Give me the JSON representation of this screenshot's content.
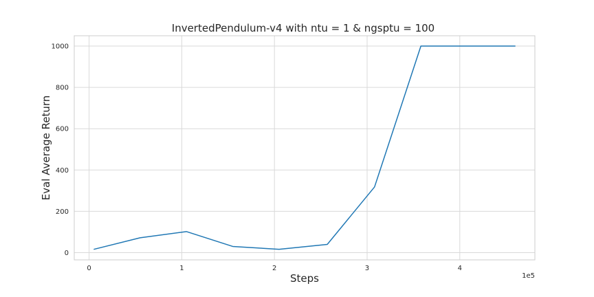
{
  "chart_data": {
    "type": "line",
    "title": "InvertedPendulum-v4 with ntu = 1 & ngsptu = 100",
    "xlabel": "Steps",
    "ylabel": "Eval Average Return",
    "x_offset_label": "1e5",
    "x_scale": 100000,
    "xlim": [
      -0.16,
      4.81
    ],
    "ylim": [
      -35,
      1050
    ],
    "xticks": [
      0,
      1,
      2,
      3,
      4
    ],
    "xtick_labels": [
      "0",
      "1",
      "2",
      "3",
      "4"
    ],
    "yticks": [
      0,
      200,
      400,
      600,
      800,
      1000
    ],
    "ytick_labels": [
      "0",
      "200",
      "400",
      "600",
      "800",
      "1000"
    ],
    "grid": true,
    "series": [
      {
        "color": "#1f77b4",
        "x": [
          5000,
          55000,
          105000,
          155000,
          205000,
          257000,
          308000,
          358000,
          409000,
          460000
        ],
        "y": [
          16,
          72,
          102,
          30,
          16,
          40,
          318,
          1000,
          1000,
          1000
        ]
      }
    ]
  }
}
